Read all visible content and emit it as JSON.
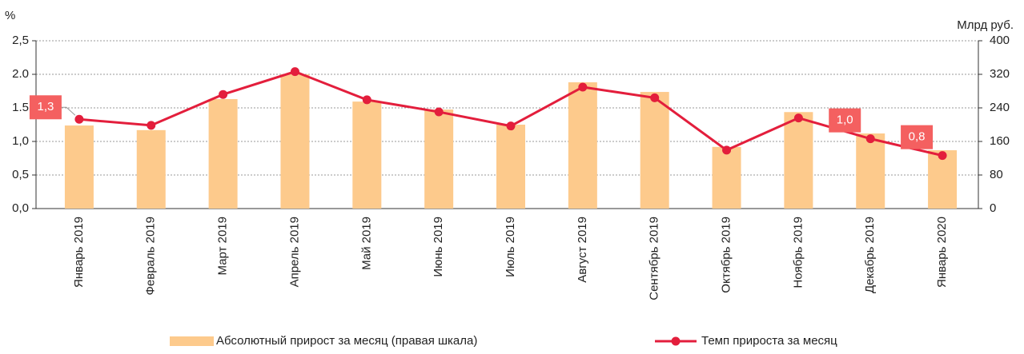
{
  "chart_data": {
    "type": "combo",
    "y_unit": "%",
    "y2_unit": "Млрд руб.",
    "categories": [
      "Январь 2019",
      "Февраль 2019",
      "Март 2019",
      "Апрель 2019",
      "Май 2019",
      "Июнь 2019",
      "Июль 2019",
      "Август 2019",
      "Сентябрь 2019",
      "Октябрь 2019",
      "Ноябрь 2019",
      "Декабрь 2019",
      "Январь 2020"
    ],
    "series": [
      {
        "name": "Абсолютный прирост за месяц (правая шкала)",
        "type": "bar",
        "axis": "y2",
        "color": "#fdca8c",
        "values": [
          198,
          187,
          261,
          320,
          255,
          236,
          200,
          301,
          278,
          147,
          230,
          179,
          139
        ]
      },
      {
        "name": "Темп прироста за месяц",
        "type": "line",
        "axis": "y",
        "color": "#e31e3c",
        "label_color": "#f46060",
        "values": [
          1.33,
          1.24,
          1.7,
          2.04,
          1.62,
          1.44,
          1.23,
          1.81,
          1.65,
          0.87,
          1.35,
          1.04,
          0.79
        ],
        "value_labels": [
          "1,3",
          null,
          null,
          null,
          null,
          null,
          null,
          null,
          null,
          null,
          null,
          "1,0",
          "0,8"
        ]
      }
    ],
    "ylim": [
      0,
      2.5
    ],
    "yticks": [
      {
        "value": 0,
        "label": "0,0"
      },
      {
        "value": 0.5,
        "label": "0,5"
      },
      {
        "value": 1,
        "label": "1,0"
      },
      {
        "value": 1.5,
        "label": "1.5"
      },
      {
        "value": 2,
        "label": "2.0"
      },
      {
        "value": 2.5,
        "label": "2,5"
      }
    ],
    "y2lim": [
      0,
      400
    ],
    "y2ticks": [
      0,
      80,
      160,
      240,
      320,
      400
    ],
    "grid": true
  }
}
